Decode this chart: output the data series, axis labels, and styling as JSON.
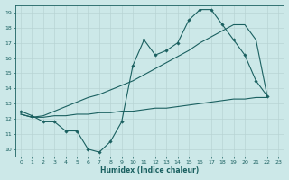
{
  "xlabel": "Humidex (Indice chaleur)",
  "bg_color": "#cce8e8",
  "grid_color": "#b8d4d4",
  "line_color": "#1a6060",
  "xlim": [
    -0.5,
    23.5
  ],
  "ylim": [
    9.5,
    19.5
  ],
  "yticks": [
    10,
    11,
    12,
    13,
    14,
    15,
    16,
    17,
    18,
    19
  ],
  "xticks": [
    0,
    1,
    2,
    3,
    4,
    5,
    6,
    7,
    8,
    9,
    10,
    11,
    12,
    13,
    14,
    15,
    16,
    17,
    18,
    19,
    20,
    21,
    22,
    23
  ],
  "line1_x": [
    0,
    1,
    2,
    3,
    4,
    5,
    6,
    7,
    8,
    9,
    10,
    11,
    12,
    13,
    14,
    15,
    16,
    17,
    18,
    19,
    20,
    21,
    22
  ],
  "line1_y": [
    12.5,
    12.2,
    11.8,
    11.8,
    11.2,
    11.2,
    10.0,
    9.8,
    10.5,
    11.8,
    15.5,
    17.2,
    16.2,
    16.5,
    17.0,
    18.5,
    19.2,
    19.2,
    18.2,
    17.2,
    16.2,
    14.5,
    13.5
  ],
  "line2_x": [
    0,
    1,
    2,
    3,
    4,
    5,
    6,
    7,
    8,
    9,
    10,
    11,
    12,
    13,
    14,
    15,
    16,
    17,
    18,
    19,
    20,
    21,
    22
  ],
  "line2_y": [
    12.3,
    12.1,
    12.1,
    12.2,
    12.2,
    12.3,
    12.3,
    12.4,
    12.4,
    12.5,
    12.5,
    12.6,
    12.7,
    12.7,
    12.8,
    12.9,
    13.0,
    13.1,
    13.2,
    13.3,
    13.3,
    13.4,
    13.4
  ],
  "line3_x": [
    0,
    1,
    2,
    3,
    4,
    5,
    6,
    7,
    8,
    9,
    10,
    11,
    12,
    13,
    14,
    15,
    16,
    17,
    18,
    19,
    20,
    21,
    22
  ],
  "line3_y": [
    12.3,
    12.1,
    12.2,
    12.5,
    12.8,
    13.1,
    13.4,
    13.6,
    13.9,
    14.2,
    14.5,
    14.9,
    15.3,
    15.7,
    16.1,
    16.5,
    17.0,
    17.4,
    17.8,
    18.2,
    18.2,
    17.2,
    13.5
  ]
}
